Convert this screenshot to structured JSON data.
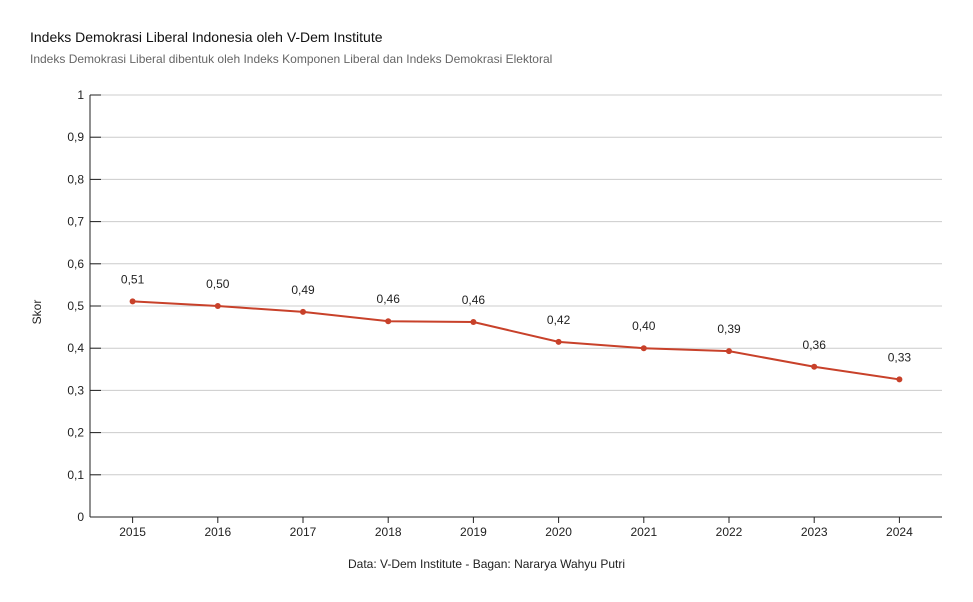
{
  "header": {
    "title": "Indeks Demokrasi Liberal Indonesia oleh V-Dem Institute",
    "subtitle": "Indeks Demokrasi Liberal dibentuk oleh Indeks Komponen Liberal dan Indeks Demokrasi Elektoral"
  },
  "footer": {
    "source": "Data: V-Dem Institute - Bagan: Nararya Wahyu Putri"
  },
  "chart_data": {
    "type": "line",
    "title": "Indeks Demokrasi Liberal Indonesia oleh V-Dem Institute",
    "subtitle": "Indeks Demokrasi Liberal dibentuk oleh Indeks Komponen Liberal dan Indeks Demokrasi Elektoral",
    "xlabel": "",
    "ylabel": "Skor",
    "ylim": [
      0,
      1
    ],
    "yticks": [
      "0",
      "0,1",
      "0,2",
      "0,3",
      "0,4",
      "0,5",
      "0,6",
      "0,7",
      "0,8",
      "0,9",
      "1"
    ],
    "categories": [
      "2015",
      "2016",
      "2017",
      "2018",
      "2019",
      "2020",
      "2021",
      "2022",
      "2023",
      "2024"
    ],
    "series": [
      {
        "values": [
          0.511,
          0.5,
          0.486,
          0.464,
          0.462,
          0.415,
          0.4,
          0.393,
          0.356,
          0.326
        ],
        "labels": [
          "0,51",
          "0,50",
          "0,49",
          "0,46",
          "0,46",
          "0,42",
          "0,40",
          "0,39",
          "0,36",
          "0,33"
        ],
        "color": "#c8412a"
      }
    ],
    "grid": true,
    "legend": "none",
    "gridColor": "#cccccc",
    "axisColor": "#222222"
  }
}
